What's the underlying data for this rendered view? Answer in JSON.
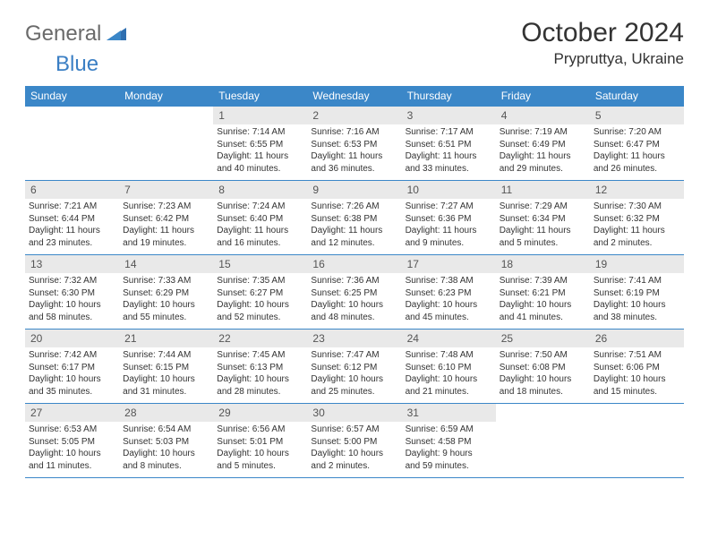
{
  "logo": {
    "gray_text": "General",
    "blue_text": "Blue"
  },
  "header": {
    "title": "October 2024",
    "location": "Prypruttya, Ukraine"
  },
  "colors": {
    "header_bg": "#3b87c8",
    "header_text": "#ffffff",
    "daynum_bg": "#e9e9e9",
    "border": "#3b87c8",
    "logo_gray": "#6a6a6a",
    "logo_blue": "#3b7fc4"
  },
  "weekdays": [
    "Sunday",
    "Monday",
    "Tuesday",
    "Wednesday",
    "Thursday",
    "Friday",
    "Saturday"
  ],
  "weeks": [
    [
      {
        "n": "",
        "l1": "",
        "l2": "",
        "l3": "",
        "l4": ""
      },
      {
        "n": "",
        "l1": "",
        "l2": "",
        "l3": "",
        "l4": ""
      },
      {
        "n": "1",
        "l1": "Sunrise: 7:14 AM",
        "l2": "Sunset: 6:55 PM",
        "l3": "Daylight: 11 hours",
        "l4": "and 40 minutes."
      },
      {
        "n": "2",
        "l1": "Sunrise: 7:16 AM",
        "l2": "Sunset: 6:53 PM",
        "l3": "Daylight: 11 hours",
        "l4": "and 36 minutes."
      },
      {
        "n": "3",
        "l1": "Sunrise: 7:17 AM",
        "l2": "Sunset: 6:51 PM",
        "l3": "Daylight: 11 hours",
        "l4": "and 33 minutes."
      },
      {
        "n": "4",
        "l1": "Sunrise: 7:19 AM",
        "l2": "Sunset: 6:49 PM",
        "l3": "Daylight: 11 hours",
        "l4": "and 29 minutes."
      },
      {
        "n": "5",
        "l1": "Sunrise: 7:20 AM",
        "l2": "Sunset: 6:47 PM",
        "l3": "Daylight: 11 hours",
        "l4": "and 26 minutes."
      }
    ],
    [
      {
        "n": "6",
        "l1": "Sunrise: 7:21 AM",
        "l2": "Sunset: 6:44 PM",
        "l3": "Daylight: 11 hours",
        "l4": "and 23 minutes."
      },
      {
        "n": "7",
        "l1": "Sunrise: 7:23 AM",
        "l2": "Sunset: 6:42 PM",
        "l3": "Daylight: 11 hours",
        "l4": "and 19 minutes."
      },
      {
        "n": "8",
        "l1": "Sunrise: 7:24 AM",
        "l2": "Sunset: 6:40 PM",
        "l3": "Daylight: 11 hours",
        "l4": "and 16 minutes."
      },
      {
        "n": "9",
        "l1": "Sunrise: 7:26 AM",
        "l2": "Sunset: 6:38 PM",
        "l3": "Daylight: 11 hours",
        "l4": "and 12 minutes."
      },
      {
        "n": "10",
        "l1": "Sunrise: 7:27 AM",
        "l2": "Sunset: 6:36 PM",
        "l3": "Daylight: 11 hours",
        "l4": "and 9 minutes."
      },
      {
        "n": "11",
        "l1": "Sunrise: 7:29 AM",
        "l2": "Sunset: 6:34 PM",
        "l3": "Daylight: 11 hours",
        "l4": "and 5 minutes."
      },
      {
        "n": "12",
        "l1": "Sunrise: 7:30 AM",
        "l2": "Sunset: 6:32 PM",
        "l3": "Daylight: 11 hours",
        "l4": "and 2 minutes."
      }
    ],
    [
      {
        "n": "13",
        "l1": "Sunrise: 7:32 AM",
        "l2": "Sunset: 6:30 PM",
        "l3": "Daylight: 10 hours",
        "l4": "and 58 minutes."
      },
      {
        "n": "14",
        "l1": "Sunrise: 7:33 AM",
        "l2": "Sunset: 6:29 PM",
        "l3": "Daylight: 10 hours",
        "l4": "and 55 minutes."
      },
      {
        "n": "15",
        "l1": "Sunrise: 7:35 AM",
        "l2": "Sunset: 6:27 PM",
        "l3": "Daylight: 10 hours",
        "l4": "and 52 minutes."
      },
      {
        "n": "16",
        "l1": "Sunrise: 7:36 AM",
        "l2": "Sunset: 6:25 PM",
        "l3": "Daylight: 10 hours",
        "l4": "and 48 minutes."
      },
      {
        "n": "17",
        "l1": "Sunrise: 7:38 AM",
        "l2": "Sunset: 6:23 PM",
        "l3": "Daylight: 10 hours",
        "l4": "and 45 minutes."
      },
      {
        "n": "18",
        "l1": "Sunrise: 7:39 AM",
        "l2": "Sunset: 6:21 PM",
        "l3": "Daylight: 10 hours",
        "l4": "and 41 minutes."
      },
      {
        "n": "19",
        "l1": "Sunrise: 7:41 AM",
        "l2": "Sunset: 6:19 PM",
        "l3": "Daylight: 10 hours",
        "l4": "and 38 minutes."
      }
    ],
    [
      {
        "n": "20",
        "l1": "Sunrise: 7:42 AM",
        "l2": "Sunset: 6:17 PM",
        "l3": "Daylight: 10 hours",
        "l4": "and 35 minutes."
      },
      {
        "n": "21",
        "l1": "Sunrise: 7:44 AM",
        "l2": "Sunset: 6:15 PM",
        "l3": "Daylight: 10 hours",
        "l4": "and 31 minutes."
      },
      {
        "n": "22",
        "l1": "Sunrise: 7:45 AM",
        "l2": "Sunset: 6:13 PM",
        "l3": "Daylight: 10 hours",
        "l4": "and 28 minutes."
      },
      {
        "n": "23",
        "l1": "Sunrise: 7:47 AM",
        "l2": "Sunset: 6:12 PM",
        "l3": "Daylight: 10 hours",
        "l4": "and 25 minutes."
      },
      {
        "n": "24",
        "l1": "Sunrise: 7:48 AM",
        "l2": "Sunset: 6:10 PM",
        "l3": "Daylight: 10 hours",
        "l4": "and 21 minutes."
      },
      {
        "n": "25",
        "l1": "Sunrise: 7:50 AM",
        "l2": "Sunset: 6:08 PM",
        "l3": "Daylight: 10 hours",
        "l4": "and 18 minutes."
      },
      {
        "n": "26",
        "l1": "Sunrise: 7:51 AM",
        "l2": "Sunset: 6:06 PM",
        "l3": "Daylight: 10 hours",
        "l4": "and 15 minutes."
      }
    ],
    [
      {
        "n": "27",
        "l1": "Sunrise: 6:53 AM",
        "l2": "Sunset: 5:05 PM",
        "l3": "Daylight: 10 hours",
        "l4": "and 11 minutes."
      },
      {
        "n": "28",
        "l1": "Sunrise: 6:54 AM",
        "l2": "Sunset: 5:03 PM",
        "l3": "Daylight: 10 hours",
        "l4": "and 8 minutes."
      },
      {
        "n": "29",
        "l1": "Sunrise: 6:56 AM",
        "l2": "Sunset: 5:01 PM",
        "l3": "Daylight: 10 hours",
        "l4": "and 5 minutes."
      },
      {
        "n": "30",
        "l1": "Sunrise: 6:57 AM",
        "l2": "Sunset: 5:00 PM",
        "l3": "Daylight: 10 hours",
        "l4": "and 2 minutes."
      },
      {
        "n": "31",
        "l1": "Sunrise: 6:59 AM",
        "l2": "Sunset: 4:58 PM",
        "l3": "Daylight: 9 hours",
        "l4": "and 59 minutes."
      },
      {
        "n": "",
        "l1": "",
        "l2": "",
        "l3": "",
        "l4": ""
      },
      {
        "n": "",
        "l1": "",
        "l2": "",
        "l3": "",
        "l4": ""
      }
    ]
  ]
}
